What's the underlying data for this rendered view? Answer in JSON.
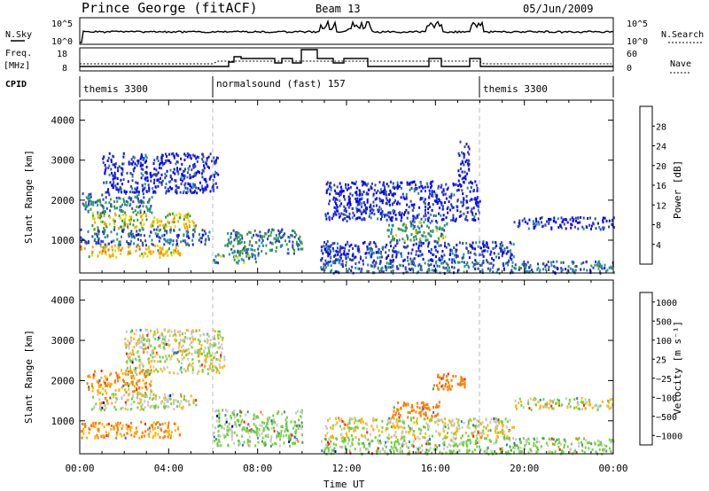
{
  "header": {
    "station": "Prince George (fitACF)",
    "beam": "Beam 13",
    "date": "05/Jun/2009"
  },
  "top_panels": {
    "nsky_label": "N.Sky",
    "nsky_ticks": [
      "10^5",
      "10^0"
    ],
    "nsearch_label": "N.Search",
    "nsearch_ticks": [
      "10^5",
      "10^0"
    ],
    "freq_label": "Freq.",
    "freq_unit": "[MHz]",
    "freq_ticks": [
      "18",
      "8"
    ],
    "nave_label": "Nave",
    "nave_ticks": [
      "60",
      "0"
    ],
    "cpid_label": "CPID",
    "cpid_segments": [
      "themis 3300",
      "normalsound (fast) 157",
      "themis 3300"
    ]
  },
  "chart_data": [
    {
      "type": "heatmap",
      "name": "power",
      "ylabel": "Slant Range [km]",
      "yticks": [
        1000,
        2000,
        3000,
        4000
      ],
      "ylim": [
        180,
        4500
      ],
      "xlim_hours": [
        0,
        24
      ],
      "colorbar": {
        "label": "Power [dB]",
        "ticks": [
          4,
          8,
          12,
          16,
          20,
          24,
          28
        ],
        "colors": [
          "#0000ff",
          "#2f3fb0",
          "#2a8a9a",
          "#3a9a3a",
          "#d8d800",
          "#ff9a00",
          "#ff5a00",
          "#ff0000"
        ]
      },
      "regions": [
        {
          "t": [
            0.0,
            4.5
          ],
          "r": [
            600,
            900
          ],
          "level": 20
        },
        {
          "t": [
            0.5,
            5.2
          ],
          "r": [
            1300,
            1700
          ],
          "level": 18
        },
        {
          "t": [
            0.1,
            3.3
          ],
          "r": [
            1700,
            2200
          ],
          "level": 10
        },
        {
          "t": [
            0.0,
            5.8
          ],
          "r": [
            900,
            1300
          ],
          "level": 8
        },
        {
          "t": [
            1.0,
            6.2
          ],
          "r": [
            2200,
            3200
          ],
          "level": 4
        },
        {
          "t": [
            6.0,
            8.0
          ],
          "r": [
            450,
            700
          ],
          "level": 12
        },
        {
          "t": [
            6.5,
            10.0
          ],
          "r": [
            700,
            1300
          ],
          "level": 10
        },
        {
          "t": [
            10.8,
            24.0
          ],
          "r": [
            200,
            500
          ],
          "level": 8
        },
        {
          "t": [
            10.8,
            19.5
          ],
          "r": [
            500,
            1000
          ],
          "level": 5
        },
        {
          "t": [
            13.8,
            16.5
          ],
          "r": [
            1000,
            1500
          ],
          "level": 12
        },
        {
          "t": [
            11.0,
            18.0
          ],
          "r": [
            1500,
            2500
          ],
          "level": 4
        },
        {
          "t": [
            19.5,
            24.0
          ],
          "r": [
            1300,
            1600
          ],
          "level": 4
        },
        {
          "t": [
            17.0,
            17.5
          ],
          "r": [
            2500,
            3500
          ],
          "level": 4
        }
      ]
    },
    {
      "type": "heatmap",
      "name": "velocity",
      "ylabel": "Slant Range [km]",
      "yticks": [
        1000,
        2000,
        3000,
        4000
      ],
      "ylim": [
        180,
        4500
      ],
      "xlim_hours": [
        0,
        24
      ],
      "xticks": [
        "00:00",
        "04:00",
        "08:00",
        "12:00",
        "16:00",
        "20:00",
        "00:00"
      ],
      "xlabel": "Time UT",
      "colorbar": {
        "label": "Velocity [m s⁻¹]",
        "ticks": [
          1000,
          500,
          100,
          25,
          -25,
          -100,
          -500,
          -1000
        ],
        "colors": [
          "#0000c0",
          "#2f6fc8",
          "#3aa050",
          "#70d040",
          "#c8c8c0",
          "#ffb400",
          "#ff7a00",
          "#ff2000"
        ]
      },
      "regions": [
        {
          "t": [
            0.0,
            4.5
          ],
          "r": [
            600,
            1000
          ],
          "level": -100
        },
        {
          "t": [
            0.3,
            3.2
          ],
          "r": [
            1700,
            2300
          ],
          "level": -100
        },
        {
          "t": [
            0.5,
            5.3
          ],
          "r": [
            1300,
            1700
          ],
          "level": 0
        },
        {
          "t": [
            2.0,
            6.5
          ],
          "r": [
            2200,
            3300
          ],
          "level": 0
        },
        {
          "t": [
            6.0,
            10.0
          ],
          "r": [
            400,
            1300
          ],
          "level": 50
        },
        {
          "t": [
            10.8,
            24.0
          ],
          "r": [
            200,
            600
          ],
          "level": 50
        },
        {
          "t": [
            14.0,
            16.2
          ],
          "r": [
            1100,
            1500
          ],
          "level": -300
        },
        {
          "t": [
            15.8,
            17.3
          ],
          "r": [
            1800,
            2200
          ],
          "level": -300
        },
        {
          "t": [
            11.0,
            19.5
          ],
          "r": [
            600,
            1100
          ],
          "level": 0
        },
        {
          "t": [
            19.5,
            24.0
          ],
          "r": [
            1300,
            1600
          ],
          "level": 0
        }
      ]
    }
  ]
}
